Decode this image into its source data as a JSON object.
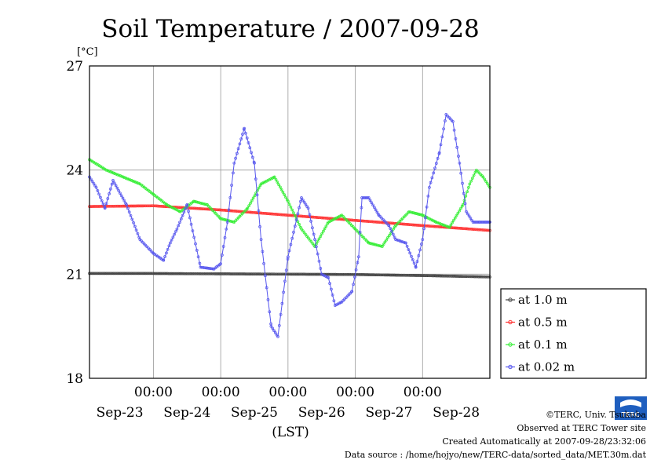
{
  "chart_data": {
    "type": "line",
    "title": "Soil Temperature / 2007-09-28",
    "yunit": "[°C]",
    "xlabel": "(LST)",
    "ylim": [
      18,
      27
    ],
    "yticks": [
      18,
      21,
      24,
      27
    ],
    "xrange_days": [
      -0.95,
      5.0
    ],
    "x_time_ticks": [
      "00:00",
      "00:00",
      "00:00",
      "00:00",
      "00:00"
    ],
    "x_date_ticks": [
      "Sep-23",
      "Sep-24",
      "Sep-25",
      "Sep-26",
      "Sep-27",
      "Sep-28"
    ],
    "grid": true,
    "legend_position": "right",
    "series": [
      {
        "name": "at 1.0 m",
        "color": "#444444",
        "marker": "circle",
        "x": [
          -0.95,
          0,
          1,
          2,
          3,
          4,
          5
        ],
        "y": [
          21.02,
          21.02,
          21.01,
          21.0,
          20.99,
          20.96,
          20.92
        ]
      },
      {
        "name": "at 0.5 m",
        "color": "#ff3333",
        "marker": "circle",
        "x": [
          -0.95,
          0,
          1,
          2,
          3,
          4,
          5
        ],
        "y": [
          22.95,
          22.97,
          22.85,
          22.7,
          22.55,
          22.4,
          22.26
        ]
      },
      {
        "name": "at 0.1 m",
        "color": "#33ee33",
        "marker": "circle",
        "x": [
          -0.95,
          -0.7,
          -0.45,
          -0.2,
          0.0,
          0.2,
          0.4,
          0.6,
          0.8,
          1.0,
          1.2,
          1.4,
          1.6,
          1.8,
          2.0,
          2.2,
          2.4,
          2.6,
          2.8,
          3.0,
          3.2,
          3.4,
          3.6,
          3.8,
          4.0,
          4.2,
          4.4,
          4.6,
          4.7,
          4.8,
          4.9,
          5.0
        ],
        "y": [
          24.3,
          24.0,
          23.8,
          23.6,
          23.3,
          23.0,
          22.8,
          23.1,
          23.0,
          22.6,
          22.5,
          22.9,
          23.6,
          23.8,
          23.1,
          22.3,
          21.8,
          22.5,
          22.7,
          22.3,
          21.9,
          21.8,
          22.4,
          22.8,
          22.7,
          22.5,
          22.35,
          23.0,
          23.6,
          24.0,
          23.8,
          23.5
        ]
      },
      {
        "name": "at 0.02 m",
        "color": "#5555ee",
        "marker": "circle",
        "x": [
          -0.95,
          -0.85,
          -0.72,
          -0.6,
          -0.4,
          -0.2,
          0.0,
          0.15,
          0.25,
          0.35,
          0.5,
          0.7,
          0.9,
          1.0,
          1.1,
          1.2,
          1.35,
          1.5,
          1.6,
          1.75,
          1.85,
          2.0,
          2.2,
          2.3,
          2.4,
          2.5,
          2.6,
          2.7,
          2.8,
          2.95,
          3.05,
          3.1,
          3.2,
          3.35,
          3.5,
          3.6,
          3.75,
          3.9,
          4.0,
          4.1,
          4.25,
          4.35,
          4.45,
          4.55,
          4.65,
          4.75,
          4.85,
          4.95,
          5.0
        ],
        "y": [
          23.8,
          23.5,
          22.9,
          23.7,
          23.0,
          22.0,
          21.6,
          21.4,
          21.9,
          22.3,
          23.0,
          21.2,
          21.15,
          21.3,
          22.5,
          24.2,
          25.2,
          24.2,
          22.0,
          19.5,
          19.2,
          21.5,
          23.2,
          22.9,
          22.0,
          21.0,
          20.9,
          20.1,
          20.2,
          20.5,
          21.5,
          23.2,
          23.2,
          22.7,
          22.4,
          22.0,
          21.9,
          21.2,
          22.0,
          23.5,
          24.5,
          25.6,
          25.4,
          24.2,
          22.8,
          22.5,
          22.5,
          22.5,
          22.5
        ]
      }
    ]
  },
  "credits": {
    "copyright": "©TERC, Univ. Tsukuba",
    "observed": "Observed at TERC Tower site",
    "created": "Created Automatically at 2007-09-28/23:32:06",
    "source": "Data source : /home/hojyo/new/TERC-data/sorted_data/MET.30m.dat",
    "logo_text": "TERC"
  }
}
